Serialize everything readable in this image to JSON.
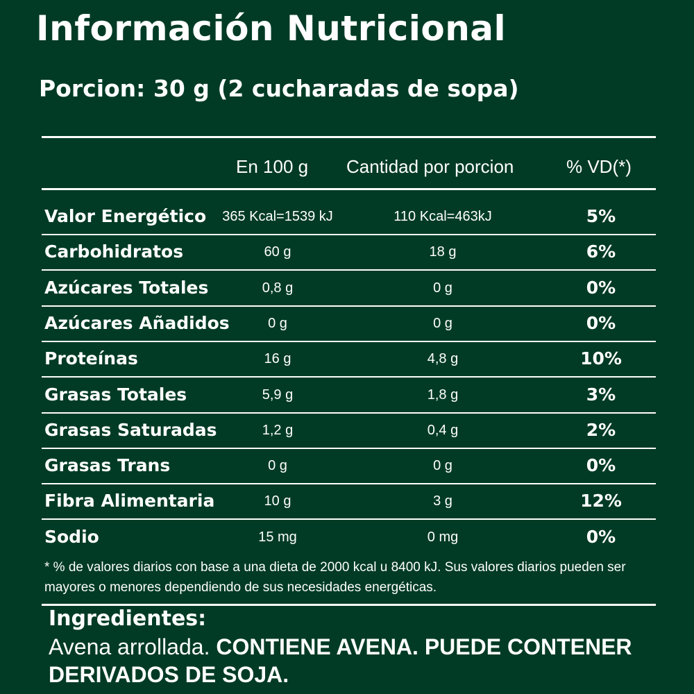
{
  "title": "Información Nutricional",
  "serving": "Porcion: 30 g (2 cucharadas de sopa)",
  "columns": {
    "per100": "En 100 g",
    "perPortion": "Cantidad por porcion",
    "dv": "% VD(*)"
  },
  "rows": [
    {
      "name": "Valor Energético",
      "per100": "365 Kcal=1539 kJ",
      "perPortion": "110 Kcal=463kJ",
      "dv": "5%"
    },
    {
      "name": "Carbohidratos",
      "per100": "60 g",
      "perPortion": "18 g",
      "dv": "6%"
    },
    {
      "name": "Azúcares Totales",
      "per100": "0,8 g",
      "perPortion": "0 g",
      "dv": "0%"
    },
    {
      "name": "Azúcares Añadidos",
      "per100": "0 g",
      "perPortion": "0 g",
      "dv": "0%"
    },
    {
      "name": "Proteínas",
      "per100": "16 g",
      "perPortion": "4,8 g",
      "dv": "10%"
    },
    {
      "name": "Grasas Totales",
      "per100": "5,9 g",
      "perPortion": "1,8 g",
      "dv": "3%"
    },
    {
      "name": "Grasas Saturadas",
      "per100": "1,2 g",
      "perPortion": "0,4 g",
      "dv": "2%"
    },
    {
      "name": "Grasas Trans",
      "per100": "0 g",
      "perPortion": "0 g",
      "dv": "0%"
    },
    {
      "name": "Fibra Alimentaria",
      "per100": "10 g",
      "perPortion": "3 g",
      "dv": "12%"
    },
    {
      "name": "Sodio",
      "per100": "15 mg",
      "perPortion": "0 mg",
      "dv": "0%"
    }
  ],
  "footnote": "* % de valores diarios con base a una dieta de 2000 kcal u 8400 kJ. Sus valores diarios pueden ser mayores o menores dependiendo de sus necesidades energéticas.",
  "ingredients": {
    "title": "Ingredientes:",
    "text": "Avena arrollada.",
    "warning": "CONTIENE AVENA. PUEDE CONTENER DERIVADOS DE SOJA."
  },
  "colors": {
    "background": "#013b25",
    "text": "#ffffff"
  }
}
